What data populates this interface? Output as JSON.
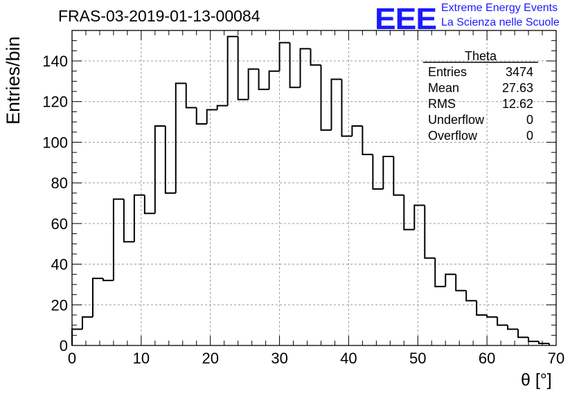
{
  "title": "FRAS-03-2019-01-13-00084",
  "logo": {
    "mark": "EEE",
    "line1": "Extreme Energy Events",
    "line2": "La Scienza nelle Scuole",
    "color": "#1a1aff"
  },
  "stats": {
    "name": "Theta",
    "rows": [
      {
        "label": "Entries",
        "value": "3474"
      },
      {
        "label": "Mean",
        "value": "27.63"
      },
      {
        "label": "RMS",
        "value": "12.62"
      },
      {
        "label": "Underflow",
        "value": "0"
      },
      {
        "label": "Overflow",
        "value": "0"
      }
    ]
  },
  "chart_data": {
    "type": "bar",
    "histogram": true,
    "xlabel": "θ [°]",
    "ylabel": "Entries/bin",
    "xlim": [
      0,
      70
    ],
    "ylim": [
      0,
      155
    ],
    "xticks": [
      0,
      10,
      20,
      30,
      40,
      50,
      60,
      70
    ],
    "yticks": [
      0,
      20,
      40,
      60,
      80,
      100,
      120,
      140
    ],
    "grid": true,
    "bin_width": 1.5,
    "x": [
      0,
      1.5,
      3,
      4.5,
      6,
      7.5,
      9,
      10.5,
      12,
      13.5,
      15,
      16.5,
      18,
      19.5,
      21,
      22.5,
      24,
      25.5,
      27,
      28.5,
      30,
      31.5,
      33,
      34.5,
      36,
      37.5,
      39,
      40.5,
      42,
      43.5,
      45,
      46.5,
      48,
      49.5,
      51,
      52.5,
      54,
      55.5,
      57,
      58.5,
      60,
      61.5,
      63,
      64.5,
      66,
      67.5
    ],
    "values": [
      8,
      14,
      33,
      32,
      72,
      51,
      74,
      65,
      108,
      75,
      129,
      117,
      109,
      116,
      118,
      152,
      121,
      136,
      126,
      135,
      149,
      127,
      146,
      138,
      106,
      131,
      103,
      108,
      94,
      77,
      93,
      74,
      57,
      69,
      43,
      29,
      35,
      27,
      22,
      15,
      14,
      10,
      8,
      4,
      2,
      1
    ]
  }
}
